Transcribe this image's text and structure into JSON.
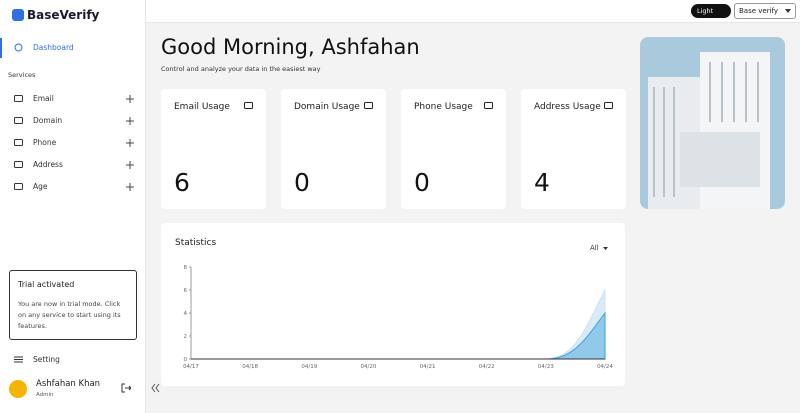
{
  "sidebar": {
    "brand": "BaseVerify",
    "dashboard": "Dashboard",
    "section": "Services",
    "services": [
      "Email",
      "Domain",
      "Phone",
      "Address",
      "Age"
    ],
    "trial": {
      "title": "Trial activated",
      "text": "You are now in trial mode. Click on any service to start using its features."
    },
    "setting": "Setting",
    "user": {
      "name": "Ashfahan Khan",
      "role": "Admin"
    }
  },
  "topbar": {
    "theme": "Light",
    "workspace": "Base verify"
  },
  "header": {
    "greeting": "Good Morning, Ashfahan",
    "subtitle": "Control and analyze your data in the easiest way"
  },
  "cards": [
    {
      "label": "Email Usage",
      "value": 6
    },
    {
      "label": "Domain Usage",
      "value": 0
    },
    {
      "label": "Phone Usage",
      "value": 0
    },
    {
      "label": "Address Usage",
      "value": 4
    }
  ],
  "chart_data": {
    "type": "area",
    "title": "Statistics",
    "filter": "All",
    "x": [
      "04/17",
      "04/18",
      "04/19",
      "04/20",
      "04/21",
      "04/22",
      "04/23",
      "04/24"
    ],
    "ylim": [
      0,
      8
    ],
    "yticks": [
      0,
      2,
      4,
      6,
      8
    ],
    "series": [
      {
        "color": "#c9e2f5",
        "values": [
          0,
          0,
          0,
          0,
          0,
          0,
          0,
          6
        ]
      },
      {
        "color": "#3a9fdc",
        "values": [
          0,
          0,
          0,
          0,
          0,
          0,
          0,
          4
        ]
      },
      {
        "color": "#333333",
        "values": [
          0,
          0,
          0,
          0,
          0,
          0,
          0,
          0
        ]
      }
    ]
  }
}
